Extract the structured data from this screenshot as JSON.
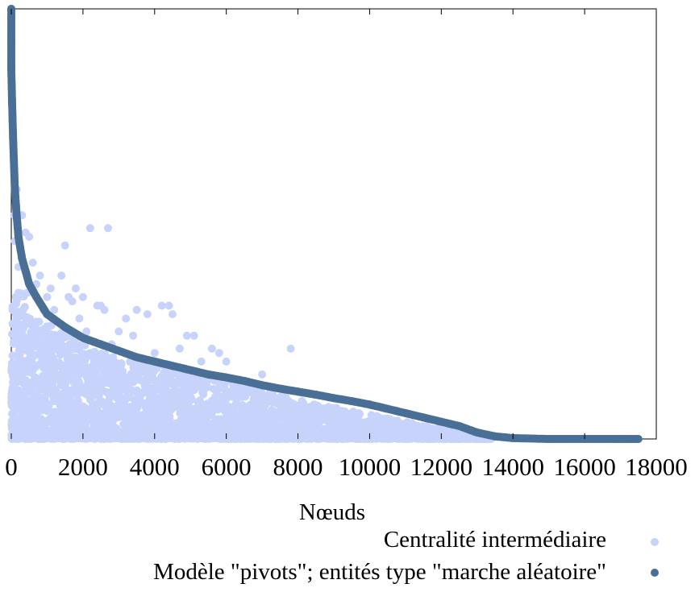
{
  "chart_data": {
    "type": "scatter",
    "title": "",
    "xlabel": "Nœuds",
    "ylabel": "",
    "xlim": [
      0,
      18000
    ],
    "x_ticks": [
      "0",
      "2000",
      "4000",
      "6000",
      "8000",
      "10000",
      "12000",
      "14000",
      "16000",
      "18000"
    ],
    "y_ticks": [],
    "grid": false,
    "legend_position": "bottom-right",
    "series": [
      {
        "name": "Centralité intermédiaire",
        "color": "#c8d3fb",
        "marker": "circle",
        "points": [
          [
            0,
            0.93
          ],
          [
            0,
            0.86
          ],
          [
            50,
            0.7
          ],
          [
            80,
            0.52
          ],
          [
            100,
            0.46
          ],
          [
            150,
            0.58
          ],
          [
            200,
            0.4
          ],
          [
            250,
            0.44
          ],
          [
            300,
            0.52
          ],
          [
            400,
            0.48
          ],
          [
            450,
            0.34
          ],
          [
            500,
            0.47
          ],
          [
            600,
            0.41
          ],
          [
            700,
            0.36
          ],
          [
            800,
            0.38
          ],
          [
            900,
            0.3
          ],
          [
            1000,
            0.33
          ],
          [
            1100,
            0.35
          ],
          [
            1200,
            0.3
          ],
          [
            1300,
            0.22
          ],
          [
            1400,
            0.38
          ],
          [
            1500,
            0.45
          ],
          [
            1600,
            0.33
          ],
          [
            1700,
            0.32
          ],
          [
            1800,
            0.35
          ],
          [
            1900,
            0.28
          ],
          [
            2000,
            0.33
          ],
          [
            2100,
            0.25
          ],
          [
            2200,
            0.49
          ],
          [
            2400,
            0.31
          ],
          [
            2500,
            0.31
          ],
          [
            2600,
            0.3
          ],
          [
            2700,
            0.49
          ],
          [
            2800,
            0.22
          ],
          [
            3000,
            0.25
          ],
          [
            3200,
            0.28
          ],
          [
            3400,
            0.24
          ],
          [
            3500,
            0.3
          ],
          [
            3800,
            0.29
          ],
          [
            4000,
            0.2
          ],
          [
            4200,
            0.31
          ],
          [
            4400,
            0.31
          ],
          [
            4500,
            0.29
          ],
          [
            4700,
            0.21
          ],
          [
            4900,
            0.24
          ],
          [
            5100,
            0.24
          ],
          [
            5300,
            0.18
          ],
          [
            5600,
            0.21
          ],
          [
            5800,
            0.2
          ],
          [
            6000,
            0.18
          ],
          [
            6200,
            0.14
          ],
          [
            6500,
            0.12
          ],
          [
            6800,
            0.12
          ],
          [
            7000,
            0.15
          ],
          [
            7200,
            0.12
          ],
          [
            7600,
            0.09
          ],
          [
            7800,
            0.21
          ],
          [
            8200,
            0.06
          ],
          [
            8800,
            0.07
          ],
          [
            9300,
            0.05
          ],
          [
            9700,
            0.06
          ],
          [
            10200,
            0.04
          ],
          [
            10600,
            0.04
          ],
          [
            11000,
            0.03
          ],
          [
            11600,
            0.03
          ],
          [
            12400,
            0.02
          ]
        ]
      },
      {
        "name": "Modèle \"pivots\"; entités type \"marche aléatoire\"",
        "color": "#4a6f96",
        "marker": "circle",
        "points": [
          [
            0,
            1.0
          ],
          [
            0,
            0.86
          ],
          [
            20,
            0.79
          ],
          [
            50,
            0.7
          ],
          [
            100,
            0.58
          ],
          [
            150,
            0.52
          ],
          [
            200,
            0.47
          ],
          [
            300,
            0.42
          ],
          [
            400,
            0.39
          ],
          [
            500,
            0.36
          ],
          [
            700,
            0.33
          ],
          [
            1000,
            0.29
          ],
          [
            1500,
            0.26
          ],
          [
            2000,
            0.235
          ],
          [
            2500,
            0.22
          ],
          [
            3000,
            0.205
          ],
          [
            3500,
            0.19
          ],
          [
            4000,
            0.18
          ],
          [
            4500,
            0.17
          ],
          [
            5000,
            0.16
          ],
          [
            5500,
            0.15
          ],
          [
            6000,
            0.143
          ],
          [
            6500,
            0.135
          ],
          [
            7000,
            0.125
          ],
          [
            7500,
            0.117
          ],
          [
            8000,
            0.11
          ],
          [
            8500,
            0.103
          ],
          [
            9000,
            0.095
          ],
          [
            9500,
            0.088
          ],
          [
            10000,
            0.08
          ],
          [
            10500,
            0.07
          ],
          [
            11000,
            0.06
          ],
          [
            11500,
            0.05
          ],
          [
            12000,
            0.04
          ],
          [
            12500,
            0.03
          ],
          [
            13000,
            0.015
          ],
          [
            13500,
            0.006
          ],
          [
            14000,
            0.002
          ],
          [
            15000,
            0.0
          ],
          [
            16000,
            0.0
          ],
          [
            17000,
            0.0
          ],
          [
            17500,
            0.0
          ]
        ]
      }
    ]
  }
}
